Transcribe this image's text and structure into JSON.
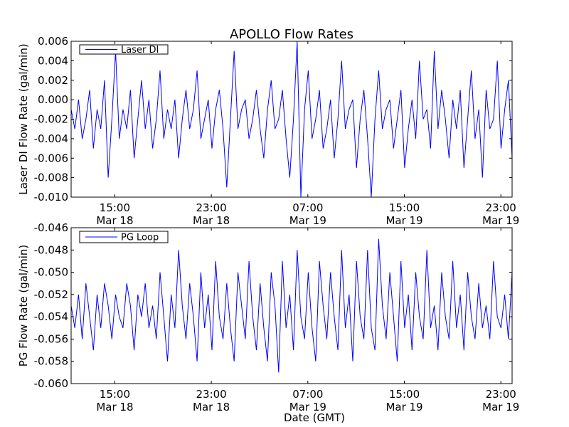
{
  "chart_data": [
    {
      "type": "line",
      "title": "APOLLO Flow Rates",
      "xlabel": "",
      "ylabel": "Laser DI Flow Rate (gal/min)",
      "legend": {
        "entries": [
          "Laser DI"
        ],
        "placement": "top-left"
      },
      "ylim": [
        -0.01,
        0.006
      ],
      "yticks": [
        "-0.010",
        "-0.008",
        "-0.006",
        "-0.004",
        "-0.002",
        "0.000",
        "0.002",
        "0.004",
        "0.006"
      ],
      "xlim_hours_from_mar18": [
        11.38,
        47.93
      ],
      "xticks": [
        {
          "hour": 15,
          "time": "15:00",
          "date": "Mar 18"
        },
        {
          "hour": 23,
          "time": "23:00",
          "date": "Mar 18"
        },
        {
          "hour": 31,
          "time": "07:00",
          "date": "Mar 19"
        },
        {
          "hour": 39,
          "time": "15:00",
          "date": "Mar 19"
        },
        {
          "hour": 47,
          "time": "23:00",
          "date": "Mar 19"
        }
      ],
      "series": [
        {
          "name": "Laser DI",
          "color": "#0000ff",
          "values": [
            -0.001,
            -0.003,
            0.0,
            -0.004,
            -0.002,
            0.001,
            -0.005,
            -0.001,
            -0.003,
            0.002,
            -0.008,
            -0.002,
            0.005,
            -0.004,
            -0.001,
            -0.003,
            0.001,
            -0.006,
            -0.002,
            0.002,
            -0.003,
            0.0,
            -0.005,
            -0.002,
            0.003,
            -0.004,
            -0.001,
            -0.003,
            0.0,
            -0.006,
            -0.002,
            0.001,
            -0.003,
            -0.001,
            0.003,
            -0.004,
            -0.002,
            0.0,
            -0.005,
            -0.001,
            0.001,
            -0.003,
            -0.009,
            -0.002,
            0.005,
            -0.003,
            -0.001,
            0.0,
            -0.004,
            -0.002,
            0.001,
            -0.003,
            -0.006,
            -0.001,
            0.002,
            -0.003,
            -0.002,
            0.001,
            -0.004,
            -0.008,
            -0.002,
            0.006,
            -0.01,
            -0.001,
            0.003,
            -0.004,
            -0.002,
            0.001,
            -0.005,
            -0.003,
            0.0,
            -0.006,
            -0.002,
            0.004,
            -0.003,
            -0.001,
            0.0,
            -0.007,
            -0.002,
            0.001,
            -0.004,
            -0.01,
            -0.002,
            0.003,
            -0.003,
            -0.001,
            0.0,
            -0.005,
            -0.002,
            0.001,
            -0.007,
            -0.003,
            0.0,
            -0.004,
            0.004,
            -0.002,
            -0.001,
            -0.005,
            0.005,
            -0.003,
            0.001,
            -0.002,
            -0.006,
            0.0,
            -0.003,
            0.001,
            -0.007,
            -0.002,
            0.003,
            -0.004,
            -0.001,
            -0.008,
            0.001,
            -0.003,
            -0.002,
            0.004,
            -0.005,
            -0.001,
            0.002,
            -0.006
          ]
        }
      ]
    },
    {
      "type": "line",
      "title": "",
      "xlabel": "Date (GMT)",
      "ylabel": "PG Flow Rate (gal/min)",
      "legend": {
        "entries": [
          "PG Loop"
        ],
        "placement": "top-left"
      },
      "ylim": [
        -0.06,
        -0.046
      ],
      "yticks": [
        "-0.060",
        "-0.058",
        "-0.056",
        "-0.054",
        "-0.052",
        "-0.050",
        "-0.048",
        "-0.046"
      ],
      "xlim_hours_from_mar18": [
        11.38,
        47.93
      ],
      "xticks": [
        {
          "hour": 15,
          "time": "15:00",
          "date": "Mar 18"
        },
        {
          "hour": 23,
          "time": "23:00",
          "date": "Mar 18"
        },
        {
          "hour": 31,
          "time": "07:00",
          "date": "Mar 19"
        },
        {
          "hour": 39,
          "time": "15:00",
          "date": "Mar 19"
        },
        {
          "hour": 47,
          "time": "23:00",
          "date": "Mar 19"
        }
      ],
      "series": [
        {
          "name": "PG Loop",
          "color": "#0000ff",
          "values": [
            -0.053,
            -0.055,
            -0.052,
            -0.056,
            -0.051,
            -0.054,
            -0.057,
            -0.052,
            -0.055,
            -0.051,
            -0.053,
            -0.056,
            -0.052,
            -0.054,
            -0.055,
            -0.051,
            -0.053,
            -0.057,
            -0.052,
            -0.054,
            -0.051,
            -0.055,
            -0.053,
            -0.056,
            -0.05,
            -0.054,
            -0.058,
            -0.052,
            -0.055,
            -0.048,
            -0.053,
            -0.056,
            -0.051,
            -0.054,
            -0.058,
            -0.05,
            -0.055,
            -0.052,
            -0.057,
            -0.049,
            -0.054,
            -0.056,
            -0.051,
            -0.055,
            -0.058,
            -0.05,
            -0.053,
            -0.056,
            -0.049,
            -0.054,
            -0.057,
            -0.051,
            -0.055,
            -0.058,
            -0.05,
            -0.053,
            -0.059,
            -0.049,
            -0.055,
            -0.052,
            -0.057,
            -0.048,
            -0.054,
            -0.056,
            -0.05,
            -0.055,
            -0.058,
            -0.049,
            -0.053,
            -0.056,
            -0.05,
            -0.054,
            -0.057,
            -0.048,
            -0.055,
            -0.052,
            -0.058,
            -0.049,
            -0.054,
            -0.056,
            -0.048,
            -0.055,
            -0.057,
            -0.047,
            -0.053,
            -0.056,
            -0.05,
            -0.054,
            -0.058,
            -0.049,
            -0.055,
            -0.052,
            -0.057,
            -0.05,
            -0.054,
            -0.056,
            -0.048,
            -0.055,
            -0.053,
            -0.057,
            -0.05,
            -0.054,
            -0.056,
            -0.049,
            -0.055,
            -0.052,
            -0.057,
            -0.05,
            -0.054,
            -0.056,
            -0.051,
            -0.055,
            -0.053,
            -0.056,
            -0.049,
            -0.054,
            -0.055,
            -0.052,
            -0.056,
            -0.05
          ]
        }
      ]
    }
  ]
}
